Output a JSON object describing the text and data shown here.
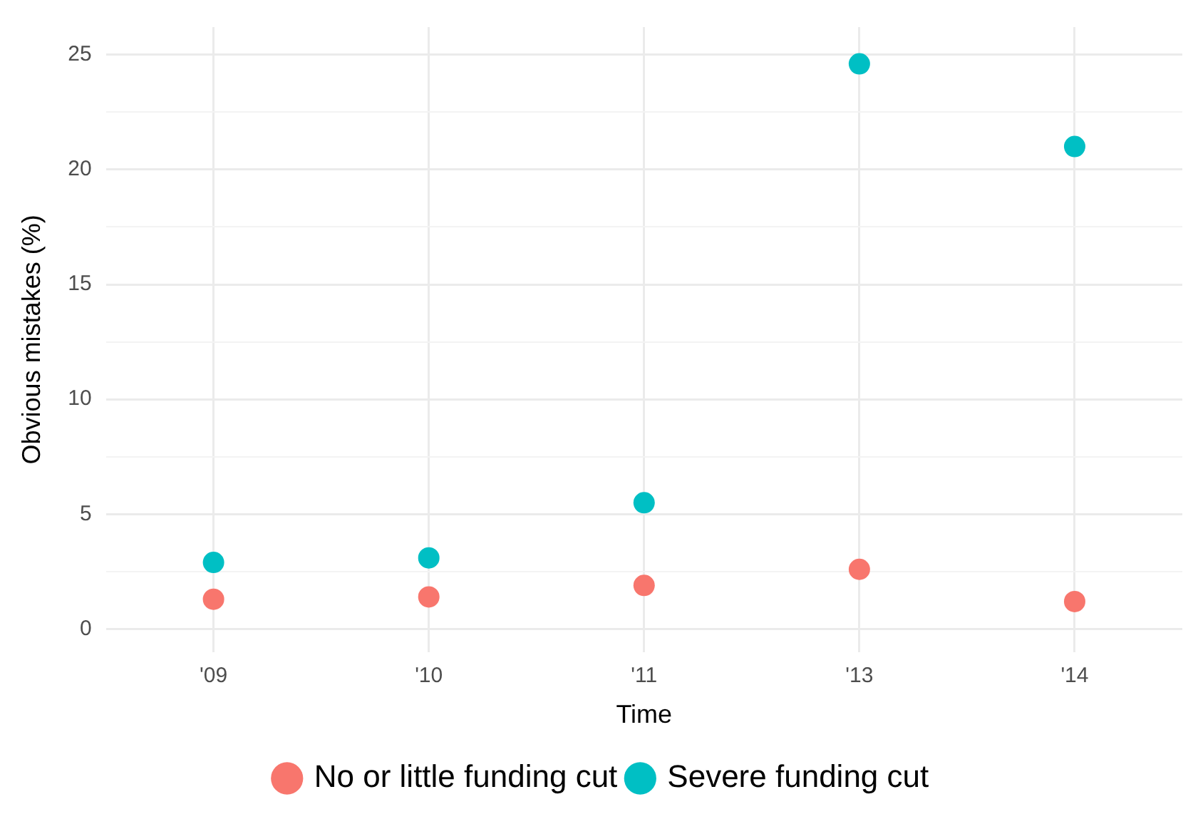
{
  "chart_data": {
    "type": "scatter",
    "xlabel": "Time",
    "ylabel": "Obvious mistakes (%)",
    "categories": [
      "'09",
      "'10",
      "'11",
      "'13",
      "'14"
    ],
    "series": [
      {
        "name": "No or little funding cut",
        "color": "#f8766d",
        "values": [
          1.3,
          1.4,
          1.9,
          2.6,
          1.2
        ]
      },
      {
        "name": "Severe funding cut",
        "color": "#00bfc4",
        "values": [
          2.9,
          3.1,
          5.5,
          24.6,
          21.0
        ]
      }
    ],
    "ylim": [
      -1,
      26.2
    ],
    "yticks": [
      0,
      {
        "value": 2.5,
        "label": null
      },
      5,
      {
        "value": 7.5,
        "label": null
      },
      10,
      {
        "value": 12.5,
        "label": null
      },
      15,
      {
        "value": 17.5,
        "label": null
      },
      20,
      {
        "value": 22.5,
        "label": null
      },
      25
    ],
    "grid": true,
    "legend": "bottom",
    "marker": "circle"
  }
}
